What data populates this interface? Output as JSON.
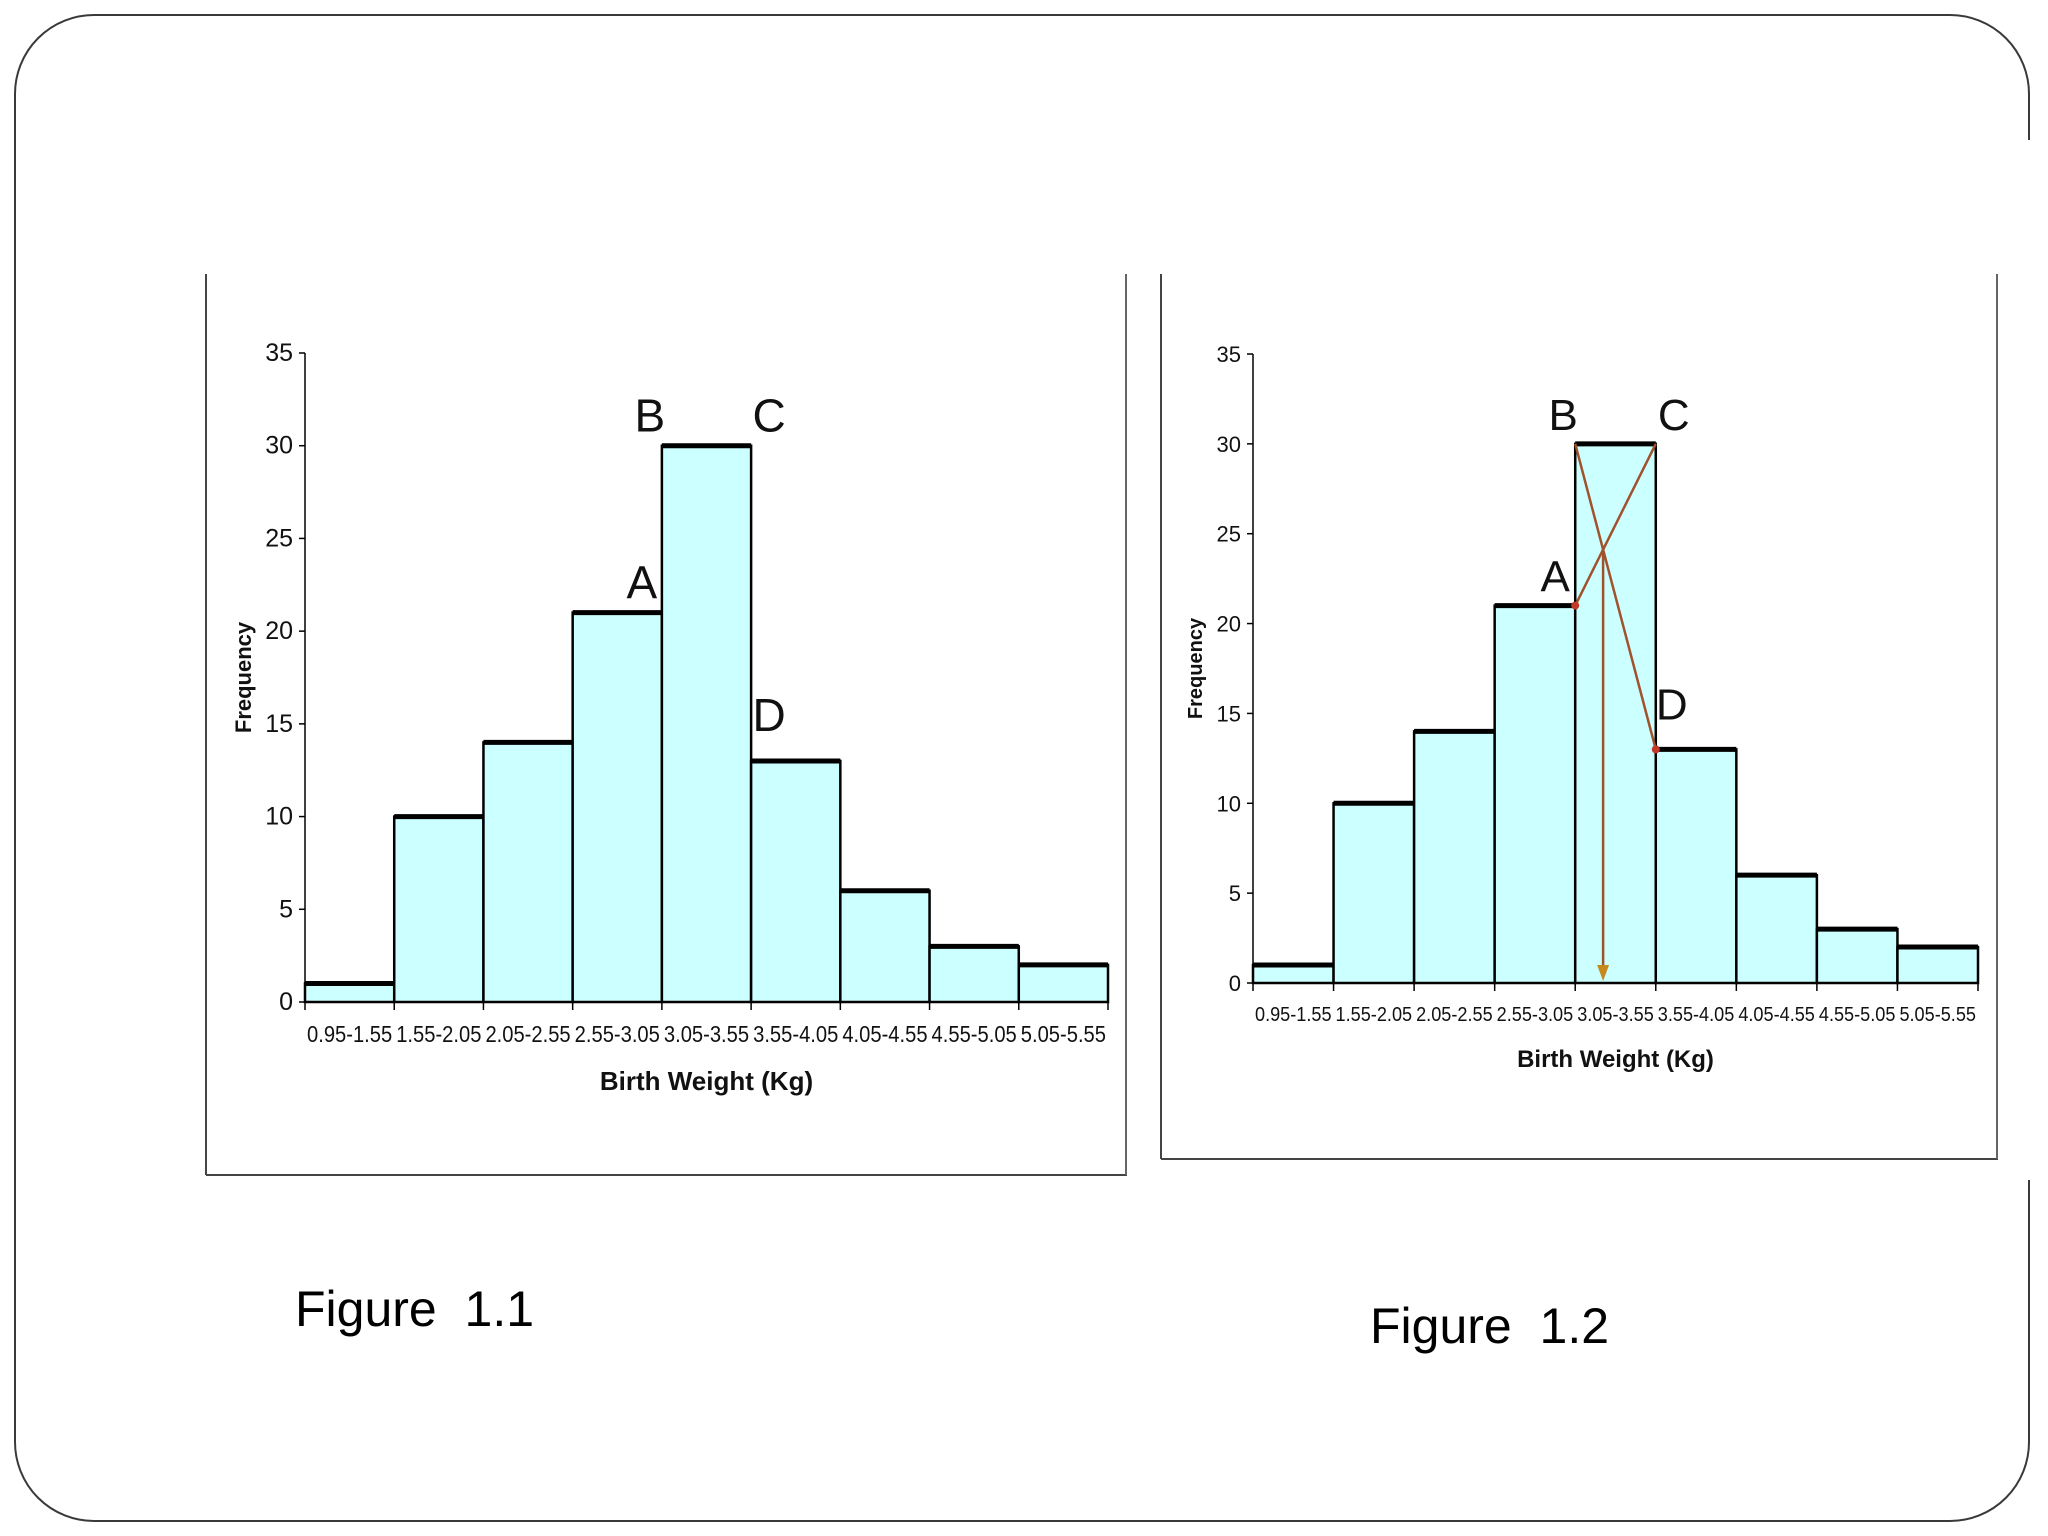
{
  "captions": [
    "Figure  1.1",
    "Figure  1.2"
  ],
  "chart_data": [
    {
      "type": "bar",
      "categories": [
        "0.95-1.55",
        "1.55-2.05",
        "2.05-2.55",
        "2.55-3.05",
        "3.05-3.55",
        "3.55-4.05",
        "4.05-4.55",
        "4.55-5.05",
        "5.05-5.55"
      ],
      "values": [
        1,
        10,
        14,
        21,
        30,
        13,
        6,
        3,
        2
      ],
      "xlabel": "Birth Weight (Kg)",
      "ylabel": "Frequency",
      "ylim": [
        0,
        35
      ],
      "yticks": [
        0,
        5,
        10,
        15,
        20,
        25,
        30,
        35
      ],
      "grid": false,
      "bar_color": "#ccffff",
      "annotations": [
        {
          "text": "A",
          "x": "3.05",
          "y": 21
        },
        {
          "text": "B",
          "x": "3.05",
          "y": 30
        },
        {
          "text": "C",
          "x": "3.55",
          "y": 30
        },
        {
          "text": "D",
          "x": "3.55",
          "y": 13
        }
      ]
    },
    {
      "type": "bar",
      "categories": [
        "0.95-1.55",
        "1.55-2.05",
        "2.05-2.55",
        "2.55-3.05",
        "3.05-3.55",
        "3.55-4.05",
        "4.05-4.55",
        "4.55-5.05",
        "5.05-5.55"
      ],
      "values": [
        1,
        10,
        14,
        21,
        30,
        13,
        6,
        3,
        2
      ],
      "xlabel": "Birth Weight (Kg)",
      "ylabel": "Frequency",
      "ylim": [
        0,
        35
      ],
      "yticks": [
        0,
        5,
        10,
        15,
        20,
        25,
        30,
        35
      ],
      "grid": false,
      "bar_color": "#ccffff",
      "line_color": "#a0522d",
      "annotations": [
        {
          "text": "A",
          "x": "3.05",
          "y": 21
        },
        {
          "text": "B",
          "x": "3.05",
          "y": 30
        },
        {
          "text": "C",
          "x": "3.55",
          "y": 30
        },
        {
          "text": "D",
          "x": "3.55",
          "y": 13
        }
      ],
      "mode_construction": {
        "lines": [
          [
            "A",
            "C"
          ],
          [
            "B",
            "D"
          ]
        ],
        "mode_arrow": true
      }
    }
  ]
}
